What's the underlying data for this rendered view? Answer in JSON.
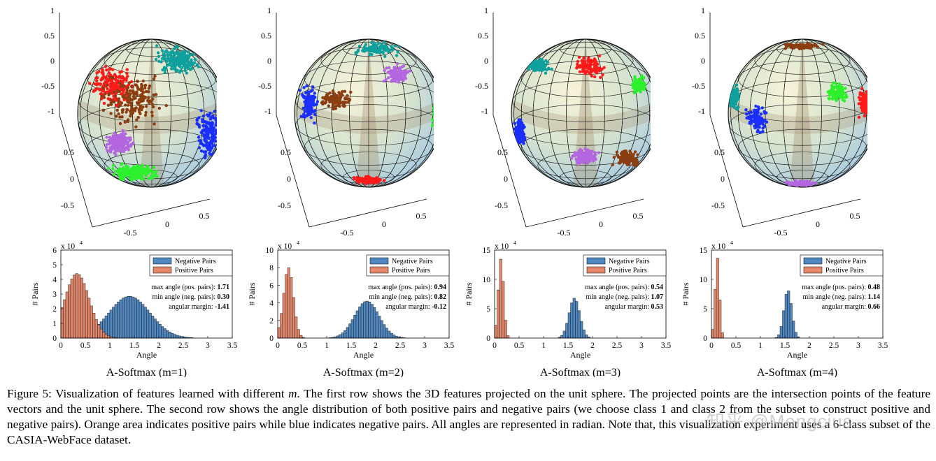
{
  "figure": {
    "caption_parts": [
      "Figure 5: Visualization of features learned with different ",
      "m",
      ". The first row shows the 3D features projected on the unit sphere. The projected points are the intersection points of the feature vectors and the unit sphere. The second row shows the angle distribution of both positive pairs and negative pairs (we choose class 1 and class 2 from the subset to construct positive and negative pairs). Orange area indicates positive pairs while blue indicates negative pairs. All angles are represented in radian. Note that, this visualization experiment uses a 6-class subset of the CASIA-WebFace dataset."
    ],
    "watermark": "知乎 @Mengcius"
  },
  "sphere_axis_ticks": {
    "z": [
      "1",
      "0.5",
      "0",
      "-0.5",
      "-1"
    ],
    "y": [
      "0.5",
      "0",
      "-0.5"
    ],
    "x": [
      "-0.5",
      "0",
      "0.5"
    ]
  },
  "sphere_class_colors": [
    "#0ea09c",
    "#ff1a1a",
    "#1a2fff",
    "#8b3e12",
    "#b366e0",
    "#2cf02c"
  ],
  "legend": {
    "negative": "Negative Pairs",
    "positive": "Positive Pairs"
  },
  "colors": {
    "negative": "#4f87c0",
    "positive": "#e4876a"
  },
  "stat_labels": {
    "max": "max angle (pos. pairs):",
    "min": "min angle (neg. pairs):",
    "margin": "angular margin:"
  },
  "chart_data": [
    {
      "type": "bar",
      "title": "A-Softmax (m=1)",
      "xlabel": "Angle",
      "ylabel": "# Pairs",
      "exponent": "x 10^4",
      "xlim": [
        0,
        3.5
      ],
      "ylim": [
        0,
        6
      ],
      "xticks": [
        "0",
        "0.5",
        "1",
        "1.5",
        "2",
        "2.5",
        "3",
        "3.5"
      ],
      "yticks": [
        "0",
        "1",
        "2",
        "3",
        "4",
        "5",
        "6"
      ],
      "series": [
        {
          "name": "Negative Pairs",
          "center": 1.4,
          "peak": 2.85,
          "width": 0.42
        },
        {
          "name": "Positive Pairs",
          "center": 0.33,
          "peak": 4.4,
          "width": 0.25
        }
      ],
      "stats": {
        "max": "1.71",
        "min": "0.30",
        "margin": "-1.41"
      }
    },
    {
      "type": "bar",
      "title": "A-Softmax (m=2)",
      "xlabel": "Angle",
      "ylabel": "# Pairs",
      "exponent": "x 10^4",
      "xlim": [
        0,
        3.5
      ],
      "ylim": [
        0,
        10
      ],
      "xticks": [
        "0",
        "0.5",
        "1",
        "1.5",
        "2",
        "2.5",
        "3",
        "3.5"
      ],
      "yticks": [
        "0",
        "2",
        "4",
        "6",
        "8",
        "10"
      ],
      "series": [
        {
          "name": "Negative Pairs",
          "center": 1.82,
          "peak": 4.2,
          "width": 0.25
        },
        {
          "name": "Positive Pairs",
          "center": 0.22,
          "peak": 8.0,
          "width": 0.1
        }
      ],
      "stats": {
        "max": "0.94",
        "min": "0.82",
        "margin": "-0.12"
      }
    },
    {
      "type": "bar",
      "title": "A-Softmax (m=3)",
      "xlabel": "Angle",
      "ylabel": "# Pairs",
      "exponent": "x 10^4",
      "xlim": [
        0,
        3.5
      ],
      "ylim": [
        0,
        15
      ],
      "xticks": [
        "0",
        "0.5",
        "1",
        "1.5",
        "2",
        "2.5",
        "3",
        "3.5"
      ],
      "yticks": [
        "0",
        "5",
        "10",
        "15"
      ],
      "series": [
        {
          "name": "Negative Pairs",
          "center": 1.63,
          "peak": 6.8,
          "width": 0.11
        },
        {
          "name": "Positive Pairs",
          "center": 0.13,
          "peak": 13.5,
          "width": 0.055
        }
      ],
      "stats": {
        "max": "0.54",
        "min": "1.07",
        "margin": "0.53"
      }
    },
    {
      "type": "bar",
      "title": "A-Softmax (m=4)",
      "xlabel": "Angle",
      "ylabel": "# Pairs",
      "exponent": "x 10^4",
      "xlim": [
        0,
        3.5
      ],
      "ylim": [
        0,
        15
      ],
      "xticks": [
        "0",
        "0.5",
        "1",
        "1.5",
        "2",
        "2.5",
        "3",
        "3.5"
      ],
      "yticks": [
        "0",
        "5",
        "10",
        "15"
      ],
      "series": [
        {
          "name": "Negative Pairs",
          "center": 1.56,
          "peak": 8.2,
          "width": 0.08
        },
        {
          "name": "Positive Pairs",
          "center": 0.12,
          "peak": 13.7,
          "width": 0.045
        }
      ],
      "stats": {
        "max": "0.48",
        "min": "1.14",
        "margin": "0.66"
      }
    }
  ]
}
